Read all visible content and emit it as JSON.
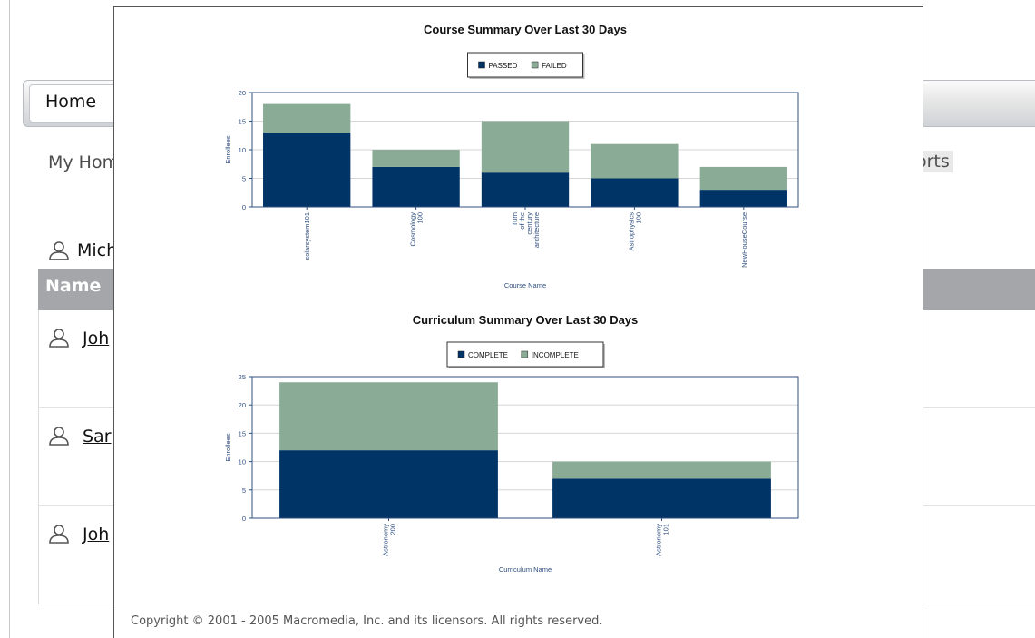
{
  "background": {
    "home_tab": "Home",
    "subnav_left": "My Hom",
    "subnav_right": "orts",
    "user_label": "Mich",
    "table_header": "Name",
    "rows": [
      {
        "name": "Joh"
      },
      {
        "name": "Sar"
      },
      {
        "name": "Joh"
      }
    ]
  },
  "footer": {
    "copyright": "Copyright © 2001 - 2005 Macromedia, Inc. and its licensors. All rights reserved."
  },
  "colors": {
    "primary_series": "#003366",
    "secondary_series": "#8aab96",
    "axis": "#2f4f7f"
  },
  "chart_data": [
    {
      "type": "bar",
      "stacked": true,
      "title": "Course Summary Over Last 30 Days",
      "xlabel": "Course Name",
      "ylabel": "Enrollees",
      "ylim": [
        0,
        20
      ],
      "yticks": [
        0,
        5,
        10,
        15,
        20
      ],
      "grid": true,
      "legend_position": "top-center",
      "categories": [
        "solarsystem101",
        "Cosmology\n100",
        "Turn\nof the\ncentury\narchitecture",
        "Astrophysics\n100",
        "NewHouseCourse"
      ],
      "series": [
        {
          "name": "PASSED",
          "color": "#003366",
          "values": [
            13,
            7,
            6,
            5,
            3
          ]
        },
        {
          "name": "FAILED",
          "color": "#8aab96",
          "values": [
            5,
            3,
            9,
            6,
            4
          ]
        }
      ]
    },
    {
      "type": "bar",
      "stacked": true,
      "title": "Curriculum Summary Over Last 30 Days",
      "xlabel": "Curriculum Name",
      "ylabel": "Enrollees",
      "ylim": [
        0,
        25
      ],
      "yticks": [
        0,
        5,
        10,
        15,
        20,
        25
      ],
      "grid": true,
      "legend_position": "top-center",
      "categories": [
        "Astronomy\n200",
        "Astronomy\n101"
      ],
      "series": [
        {
          "name": "COMPLETE",
          "color": "#003366",
          "values": [
            12,
            7
          ]
        },
        {
          "name": "INCOMPLETE",
          "color": "#8aab96",
          "values": [
            12,
            3
          ]
        }
      ]
    }
  ]
}
